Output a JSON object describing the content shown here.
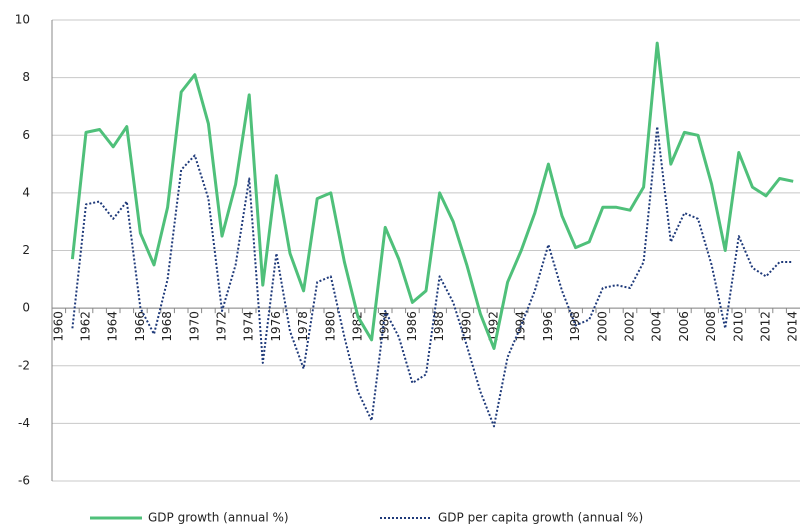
{
  "chart_data": {
    "type": "line",
    "categories": [
      "1960",
      null,
      "1962",
      null,
      "1964",
      null,
      "1966",
      null,
      "1968",
      null,
      "1970",
      null,
      "1972",
      null,
      "1974",
      null,
      "1976",
      null,
      "1978",
      null,
      "1980",
      null,
      "1982",
      null,
      "1984",
      null,
      "1986",
      null,
      "1988",
      null,
      "1990",
      null,
      "1992",
      null,
      "1994",
      null,
      "1996",
      null,
      "1998",
      null,
      "2000",
      null,
      "2002",
      null,
      "2004",
      null,
      "2006",
      null,
      "2008",
      null,
      "2010",
      null,
      "2012",
      null,
      "2014"
    ],
    "series": [
      {
        "name": "GDP growth (annual %)",
        "color": "#4fc07a",
        "style": "solid",
        "values": [
          null,
          1.7,
          6.1,
          6.2,
          5.6,
          6.3,
          2.6,
          1.5,
          3.5,
          7.5,
          8.1,
          6.4,
          2.5,
          4.3,
          7.4,
          0.8,
          4.6,
          1.9,
          0.6,
          3.8,
          4.0,
          1.6,
          -0.3,
          -1.1,
          2.8,
          1.7,
          0.2,
          0.6,
          4.0,
          3.0,
          1.5,
          -0.2,
          -1.4,
          0.9,
          2.0,
          3.3,
          5.0,
          3.2,
          2.1,
          2.3,
          3.5,
          3.5,
          3.4,
          4.2,
          9.2,
          5.0,
          6.1,
          6.0,
          4.3,
          2.0,
          5.4,
          4.2,
          3.9,
          4.5,
          4.4
        ]
      },
      {
        "name": "GDP per capita growth (annual %)",
        "color": "#1f3a7a",
        "style": "dotted",
        "values": [
          null,
          -0.7,
          3.6,
          3.7,
          3.1,
          3.7,
          0.0,
          -0.9,
          1.0,
          4.8,
          5.3,
          3.8,
          -0.1,
          1.5,
          4.5,
          -1.9,
          1.9,
          -0.8,
          -2.1,
          0.9,
          1.1,
          -1.0,
          -2.9,
          -3.9,
          -0.1,
          -1.0,
          -2.6,
          -2.3,
          1.1,
          0.2,
          -1.3,
          -2.9,
          -4.1,
          -1.7,
          -0.6,
          0.6,
          2.2,
          0.6,
          -0.6,
          -0.4,
          0.7,
          0.8,
          0.7,
          1.6,
          6.3,
          2.3,
          3.3,
          3.1,
          1.5,
          -0.7,
          2.5,
          1.4,
          1.1,
          1.6,
          1.6
        ]
      }
    ],
    "ylim": [
      -6,
      10
    ],
    "yticks": [
      -6,
      -4,
      -2,
      0,
      2,
      4,
      6,
      8,
      10
    ],
    "grid": true,
    "legend": "bottom"
  }
}
